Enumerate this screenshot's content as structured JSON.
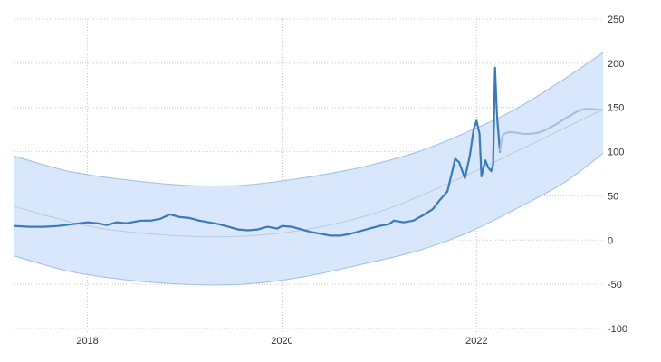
{
  "chart_data": {
    "type": "line",
    "title": "",
    "xlabel": "",
    "ylabel": "",
    "xlim": [
      2017.25,
      2023.3
    ],
    "ylim": [
      -100,
      250
    ],
    "grid": true,
    "x_ticks": [
      {
        "value": 2018,
        "label": "2018"
      },
      {
        "value": 2020,
        "label": "2020"
      },
      {
        "value": 2022,
        "label": "2022"
      }
    ],
    "y_ticks": [
      {
        "value": 250,
        "label": "250"
      },
      {
        "value": 200,
        "label": "200"
      },
      {
        "value": 150,
        "label": "150"
      },
      {
        "value": 100,
        "label": "100"
      },
      {
        "value": 50,
        "label": "50"
      },
      {
        "value": 0,
        "label": "0"
      },
      {
        "value": -50,
        "label": "-50"
      },
      {
        "value": -100,
        "label": "-100"
      }
    ],
    "colors": {
      "series": "#3a7ab8",
      "forecast": "#a8c0dc",
      "trend": "#b7c9e0",
      "band_fill": "#d6e6fb",
      "band_stroke": "#9dbfe8",
      "grid": "#c8c8c8"
    },
    "series": [
      {
        "role": "historical",
        "points": [
          [
            2017.25,
            16
          ],
          [
            2017.4,
            15
          ],
          [
            2017.55,
            15
          ],
          [
            2017.7,
            16
          ],
          [
            2017.85,
            18
          ],
          [
            2018.0,
            20
          ],
          [
            2018.1,
            19
          ],
          [
            2018.2,
            17
          ],
          [
            2018.3,
            20
          ],
          [
            2018.4,
            19
          ],
          [
            2018.55,
            22
          ],
          [
            2018.65,
            22
          ],
          [
            2018.75,
            24
          ],
          [
            2018.85,
            29
          ],
          [
            2018.95,
            26
          ],
          [
            2019.05,
            25
          ],
          [
            2019.15,
            22
          ],
          [
            2019.25,
            20
          ],
          [
            2019.35,
            18
          ],
          [
            2019.45,
            15
          ],
          [
            2019.55,
            12
          ],
          [
            2019.65,
            11
          ],
          [
            2019.75,
            12
          ],
          [
            2019.85,
            15
          ],
          [
            2019.95,
            13
          ],
          [
            2020.0,
            16
          ],
          [
            2020.1,
            15
          ],
          [
            2020.2,
            12
          ],
          [
            2020.3,
            9
          ],
          [
            2020.4,
            7
          ],
          [
            2020.5,
            5
          ],
          [
            2020.6,
            5
          ],
          [
            2020.7,
            7
          ],
          [
            2020.8,
            10
          ],
          [
            2020.9,
            13
          ],
          [
            2021.0,
            16
          ],
          [
            2021.1,
            18
          ],
          [
            2021.15,
            22
          ],
          [
            2021.25,
            20
          ],
          [
            2021.35,
            22
          ],
          [
            2021.45,
            28
          ],
          [
            2021.55,
            35
          ],
          [
            2021.62,
            45
          ],
          [
            2021.7,
            55
          ],
          [
            2021.75,
            78
          ],
          [
            2021.78,
            92
          ],
          [
            2021.82,
            88
          ],
          [
            2021.88,
            70
          ],
          [
            2021.93,
            95
          ],
          [
            2021.97,
            125
          ],
          [
            2022.0,
            135
          ],
          [
            2022.03,
            120
          ],
          [
            2022.05,
            72
          ],
          [
            2022.09,
            90
          ],
          [
            2022.12,
            82
          ],
          [
            2022.15,
            78
          ],
          [
            2022.17,
            85
          ],
          [
            2022.19,
            195
          ],
          [
            2022.21,
            140
          ],
          [
            2022.24,
            100
          ]
        ]
      },
      {
        "role": "forecast",
        "points": [
          [
            2022.24,
            100
          ],
          [
            2022.27,
            118
          ],
          [
            2022.35,
            122
          ],
          [
            2022.5,
            120
          ],
          [
            2022.65,
            122
          ],
          [
            2022.8,
            130
          ],
          [
            2022.95,
            140
          ],
          [
            2023.1,
            148
          ],
          [
            2023.3,
            147
          ]
        ]
      },
      {
        "role": "trend",
        "points": [
          [
            2017.25,
            38
          ],
          [
            2018.0,
            16
          ],
          [
            2018.75,
            6
          ],
          [
            2019.5,
            4
          ],
          [
            2020.25,
            12
          ],
          [
            2021.0,
            32
          ],
          [
            2021.75,
            66
          ],
          [
            2022.5,
            105
          ],
          [
            2023.3,
            148
          ]
        ]
      }
    ],
    "band": {
      "upper": [
        [
          2017.25,
          95
        ],
        [
          2017.8,
          78
        ],
        [
          2018.4,
          68
        ],
        [
          2019.0,
          62
        ],
        [
          2019.6,
          62
        ],
        [
          2020.2,
          70
        ],
        [
          2020.8,
          82
        ],
        [
          2021.4,
          100
        ],
        [
          2021.9,
          122
        ],
        [
          2022.4,
          148
        ],
        [
          2022.9,
          182
        ],
        [
          2023.3,
          212
        ]
      ],
      "lower": [
        [
          2017.25,
          -18
        ],
        [
          2017.8,
          -35
        ],
        [
          2018.4,
          -45
        ],
        [
          2019.0,
          -50
        ],
        [
          2019.6,
          -50
        ],
        [
          2020.2,
          -42
        ],
        [
          2020.8,
          -28
        ],
        [
          2021.4,
          -12
        ],
        [
          2021.9,
          8
        ],
        [
          2022.4,
          35
        ],
        [
          2022.9,
          65
        ],
        [
          2023.3,
          98
        ]
      ]
    }
  }
}
